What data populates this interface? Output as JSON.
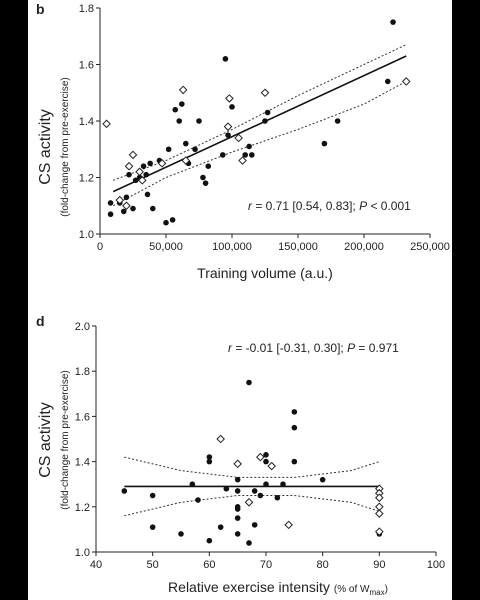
{
  "chart_data": [
    {
      "panel": "b",
      "type": "scatter",
      "xlabel": "Training volume (a.u.)",
      "ylabel": "CS activity",
      "ylabel_sub": "(fold-change from pre-exercise)",
      "xlim": [
        0,
        250000
      ],
      "ylim": [
        1.0,
        1.8
      ],
      "xticks": [
        0,
        50000,
        100000,
        150000,
        200000,
        250000
      ],
      "xtick_labels": [
        "0",
        "50,000",
        "100,000",
        "150,000",
        "200,000",
        "250,000"
      ],
      "yticks": [
        1.0,
        1.2,
        1.4,
        1.6,
        1.8
      ],
      "ytick_labels": [
        "1.0",
        "1.2",
        "1.4",
        "1.6",
        "1.8"
      ],
      "annotation": {
        "r_sym": "r",
        "r_text": " = 0.71 [0.54, 0.83]; ",
        "p_sym": "P",
        "p_text": " < 0.001"
      },
      "fit": {
        "x": [
          10000,
          232000
        ],
        "y": [
          1.15,
          1.63
        ]
      },
      "ci_upper": {
        "x": [
          10000,
          50000,
          100000,
          150000,
          200000,
          232000
        ],
        "y": [
          1.19,
          1.26,
          1.37,
          1.49,
          1.6,
          1.67
        ]
      },
      "ci_lower": {
        "x": [
          10000,
          50000,
          100000,
          150000,
          200000,
          232000
        ],
        "y": [
          1.1,
          1.2,
          1.29,
          1.37,
          1.46,
          1.54
        ]
      },
      "series": [
        {
          "marker": "filled-circle",
          "points": [
            [
              8000,
              1.07
            ],
            [
              8000,
              1.11
            ],
            [
              15000,
              1.11
            ],
            [
              18000,
              1.08
            ],
            [
              20000,
              1.13
            ],
            [
              22000,
              1.21
            ],
            [
              25000,
              1.09
            ],
            [
              27000,
              1.19
            ],
            [
              30000,
              1.2
            ],
            [
              33000,
              1.24
            ],
            [
              35000,
              1.21
            ],
            [
              36000,
              1.14
            ],
            [
              38000,
              1.25
            ],
            [
              40000,
              1.09
            ],
            [
              45000,
              1.26
            ],
            [
              50000,
              1.04
            ],
            [
              52000,
              1.3
            ],
            [
              55000,
              1.05
            ],
            [
              57000,
              1.44
            ],
            [
              60000,
              1.4
            ],
            [
              62000,
              1.46
            ],
            [
              65000,
              1.32
            ],
            [
              67000,
              1.25
            ],
            [
              72000,
              1.3
            ],
            [
              75000,
              1.4
            ],
            [
              78000,
              1.2
            ],
            [
              80000,
              1.18
            ],
            [
              82000,
              1.24
            ],
            [
              93000,
              1.28
            ],
            [
              95000,
              1.62
            ],
            [
              97000,
              1.35
            ],
            [
              100000,
              1.45
            ],
            [
              110000,
              1.28
            ],
            [
              113000,
              1.31
            ],
            [
              115000,
              1.28
            ],
            [
              125000,
              1.4
            ],
            [
              127000,
              1.43
            ],
            [
              170000,
              1.32
            ],
            [
              180000,
              1.4
            ],
            [
              218000,
              1.54
            ],
            [
              222000,
              1.75
            ]
          ]
        },
        {
          "marker": "open-diamond",
          "points": [
            [
              5000,
              1.39
            ],
            [
              15000,
              1.12
            ],
            [
              20000,
              1.1
            ],
            [
              22000,
              1.24
            ],
            [
              25000,
              1.28
            ],
            [
              30000,
              1.22
            ],
            [
              32000,
              1.19
            ],
            [
              47000,
              1.25
            ],
            [
              63000,
              1.51
            ],
            [
              65000,
              1.26
            ],
            [
              97000,
              1.38
            ],
            [
              98000,
              1.48
            ],
            [
              105000,
              1.34
            ],
            [
              108000,
              1.26
            ],
            [
              125000,
              1.5
            ],
            [
              232000,
              1.54
            ]
          ]
        }
      ]
    },
    {
      "panel": "d",
      "type": "scatter",
      "xlabel": "Relative exercise intensity",
      "xlabel_unit_pre": "(% of W",
      "xlabel_unit_sub": "max",
      "xlabel_unit_post": ")",
      "ylabel": "CS activity",
      "ylabel_sub": "(fold-change from pre-exercise)",
      "xlim": [
        40,
        100
      ],
      "ylim": [
        1.0,
        2.0
      ],
      "xticks": [
        40,
        50,
        60,
        70,
        80,
        90,
        100
      ],
      "xtick_labels": [
        "40",
        "50",
        "60",
        "70",
        "80",
        "90",
        "100"
      ],
      "yticks": [
        1.0,
        1.2,
        1.4,
        1.6,
        1.8,
        2.0
      ],
      "ytick_labels": [
        "1.0",
        "1.2",
        "1.4",
        "1.6",
        "1.8",
        "2.0"
      ],
      "annotation": {
        "r_sym": "r",
        "r_text": " = -0.01 [-0.31, 0.30]; ",
        "p_sym": "P",
        "p_text": " = 0.971"
      },
      "fit": {
        "x": [
          45,
          90
        ],
        "y": [
          1.29,
          1.29
        ]
      },
      "ci_upper": {
        "x": [
          45,
          55,
          65,
          75,
          85,
          90
        ],
        "y": [
          1.42,
          1.36,
          1.33,
          1.33,
          1.36,
          1.4
        ]
      },
      "ci_lower": {
        "x": [
          45,
          55,
          65,
          75,
          85,
          90
        ],
        "y": [
          1.16,
          1.22,
          1.25,
          1.25,
          1.22,
          1.18
        ]
      },
      "series": [
        {
          "marker": "filled-circle",
          "points": [
            [
              45,
              1.27
            ],
            [
              50,
              1.25
            ],
            [
              50,
              1.11
            ],
            [
              55,
              1.08
            ],
            [
              57,
              1.3
            ],
            [
              58,
              1.23
            ],
            [
              60,
              1.42
            ],
            [
              60,
              1.4
            ],
            [
              60,
              1.05
            ],
            [
              62,
              1.11
            ],
            [
              63,
              1.28
            ],
            [
              65,
              1.32
            ],
            [
              65,
              1.27
            ],
            [
              65,
              1.2
            ],
            [
              65,
              1.19
            ],
            [
              65,
              1.15
            ],
            [
              65,
              1.08
            ],
            [
              67,
              1.04
            ],
            [
              67,
              1.75
            ],
            [
              68,
              1.12
            ],
            [
              68,
              1.27
            ],
            [
              69,
              1.25
            ],
            [
              70,
              1.43
            ],
            [
              70,
              1.4
            ],
            [
              70,
              1.3
            ],
            [
              72,
              1.24
            ],
            [
              73,
              1.3
            ],
            [
              75,
              1.62
            ],
            [
              75,
              1.55
            ],
            [
              75,
              1.4
            ],
            [
              80,
              1.32
            ],
            [
              90,
              1.08
            ]
          ]
        },
        {
          "marker": "open-diamond",
          "points": [
            [
              62,
              1.5
            ],
            [
              65,
              1.39
            ],
            [
              67,
              1.22
            ],
            [
              69,
              1.42
            ],
            [
              71,
              1.38
            ],
            [
              74,
              1.12
            ],
            [
              90,
              1.28
            ],
            [
              90,
              1.26
            ],
            [
              90,
              1.24
            ],
            [
              90,
              1.2
            ],
            [
              90,
              1.17
            ],
            [
              90,
              1.09
            ]
          ]
        }
      ]
    }
  ]
}
